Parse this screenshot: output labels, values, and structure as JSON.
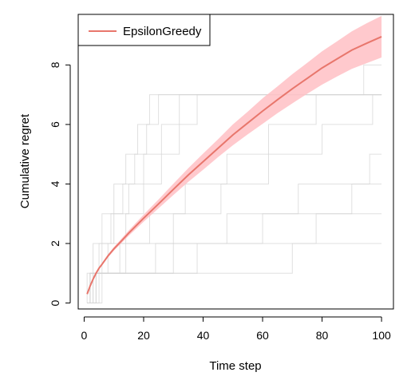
{
  "chart_data": {
    "type": "line",
    "title": "",
    "xlabel": "Time step",
    "ylabel": "Cumulative regret",
    "xlim": [
      -2,
      104
    ],
    "ylim": [
      -0.2,
      9.7
    ],
    "x_ticks": [
      0,
      20,
      40,
      60,
      80,
      100
    ],
    "y_ticks": [
      0,
      2,
      4,
      6,
      8
    ],
    "grid": false,
    "legend_position": "top-left",
    "series": [
      {
        "name": "EpsilonGreedy",
        "color": "#e8766c",
        "band_color": "#ffc0c4",
        "x": [
          1,
          2,
          3,
          4,
          5,
          6,
          8,
          10,
          12,
          15,
          20,
          25,
          30,
          35,
          40,
          45,
          50,
          55,
          60,
          65,
          70,
          75,
          80,
          85,
          90,
          95,
          100
        ],
        "values": [
          0.3,
          0.57,
          0.8,
          1.0,
          1.17,
          1.3,
          1.58,
          1.82,
          2.03,
          2.35,
          2.85,
          3.33,
          3.82,
          4.3,
          4.75,
          5.2,
          5.65,
          6.05,
          6.45,
          6.83,
          7.2,
          7.55,
          7.9,
          8.2,
          8.5,
          8.73,
          8.95
        ],
        "lower": [
          0.28,
          0.55,
          0.77,
          0.97,
          1.13,
          1.26,
          1.53,
          1.76,
          1.96,
          2.26,
          2.73,
          3.18,
          3.63,
          4.07,
          4.48,
          4.9,
          5.3,
          5.67,
          6.02,
          6.38,
          6.71,
          7.03,
          7.34,
          7.61,
          7.87,
          8.06,
          8.25
        ],
        "upper": [
          0.32,
          0.59,
          0.83,
          1.03,
          1.21,
          1.34,
          1.63,
          1.88,
          2.1,
          2.44,
          2.97,
          3.48,
          4.01,
          4.53,
          5.02,
          5.5,
          6.0,
          6.43,
          6.88,
          7.28,
          7.69,
          8.07,
          8.46,
          8.79,
          9.13,
          9.4,
          9.65
        ]
      }
    ],
    "background_runs": {
      "color": "#d3d3d3",
      "levels": [
        0,
        1,
        2,
        3,
        4,
        5,
        6,
        7,
        8,
        9
      ],
      "step_x": [
        [
          2,
          5,
          9,
          13,
          17,
          21,
          25
        ],
        [
          1,
          3,
          6,
          10,
          14,
          18,
          22
        ],
        [
          3,
          6,
          10,
          15,
          20,
          26,
          32
        ],
        [
          2,
          8,
          14,
          20,
          26,
          32,
          38
        ],
        [
          4,
          12,
          22,
          34,
          48,
          62,
          78,
          94
        ],
        [
          3,
          14,
          30,
          46,
          62,
          80,
          97
        ],
        [
          2,
          24,
          48,
          72,
          96
        ],
        [
          5,
          38,
          78
        ],
        [
          6,
          70
        ],
        [
          4,
          30,
          60,
          90
        ]
      ]
    }
  },
  "legend": {
    "entries": [
      "EpsilonGreedy"
    ]
  }
}
